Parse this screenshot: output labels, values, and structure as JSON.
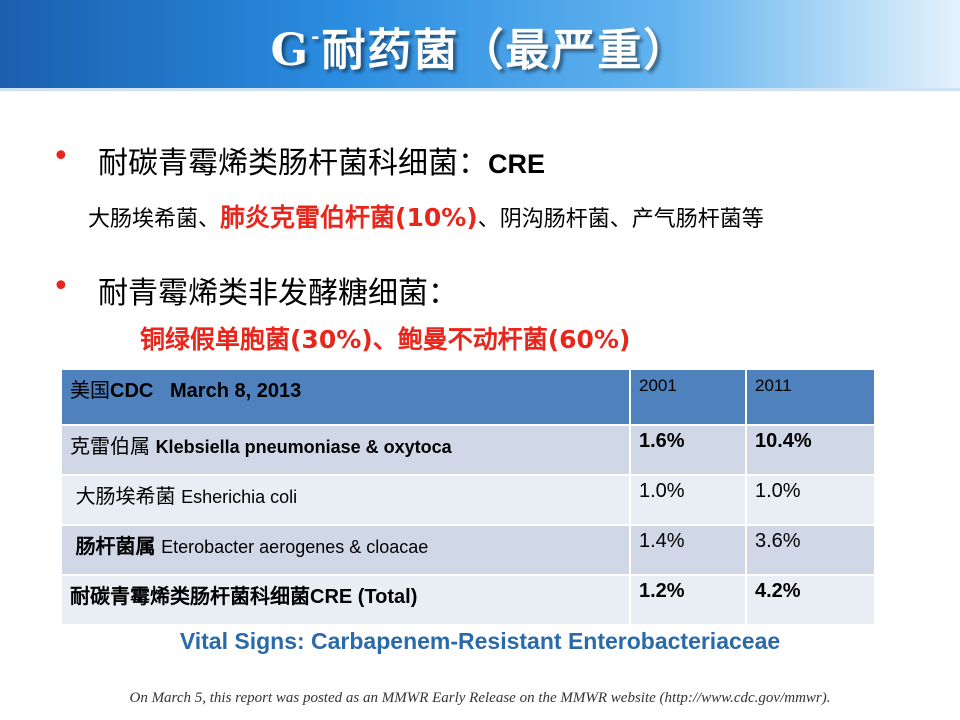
{
  "title": {
    "main": "G",
    "sup": "-",
    "rest": "耐药菌（最严重）"
  },
  "bullet1": {
    "zh": "耐碳青霉烯类肠杆菌科细菌：",
    "en": "CRE"
  },
  "sub1": {
    "pre": "大肠埃希菌、",
    "hl": "肺炎克雷伯杆菌(10%)",
    "post": "、阴沟肠杆菌、产气肠杆菌等"
  },
  "bullet2": {
    "zh": "耐青霉烯类非发酵糖细菌："
  },
  "sub2": {
    "text": "铜绿假单胞菌(30%)、鲍曼不动杆菌(60%)"
  },
  "table": {
    "header": {
      "source_zh": "美国",
      "source_en": "CDC   March 8, 2013",
      "y1": "2001",
      "y2": "2011"
    },
    "rows": [
      {
        "zh": "克雷伯属",
        "en": "Klebsiella pneumoniase & oxytoca",
        "v1": "1.6%",
        "v2": "10.4%"
      },
      {
        "zh": "大肠埃希菌",
        "en": "Esherichia coli",
        "v1": "1.0%",
        "v2": "1.0%"
      },
      {
        "zh": "肠杆菌属",
        "en": "Eterobacter aerogenes & cloacae",
        "v1": "1.4%",
        "v2": "3.6%"
      },
      {
        "zh": "耐碳青霉烯类肠杆菌科细菌",
        "en": "CRE (Total)",
        "v1": "1.2%",
        "v2": "4.2%"
      }
    ]
  },
  "vital_signs": "Vital Signs: Carbapenem-Resistant Enterobacteriaceae",
  "footer": "On March 5, this report was posted as an MMWR Early Release on the MMWR website (http://www.cdc.gov/mmwr)."
}
